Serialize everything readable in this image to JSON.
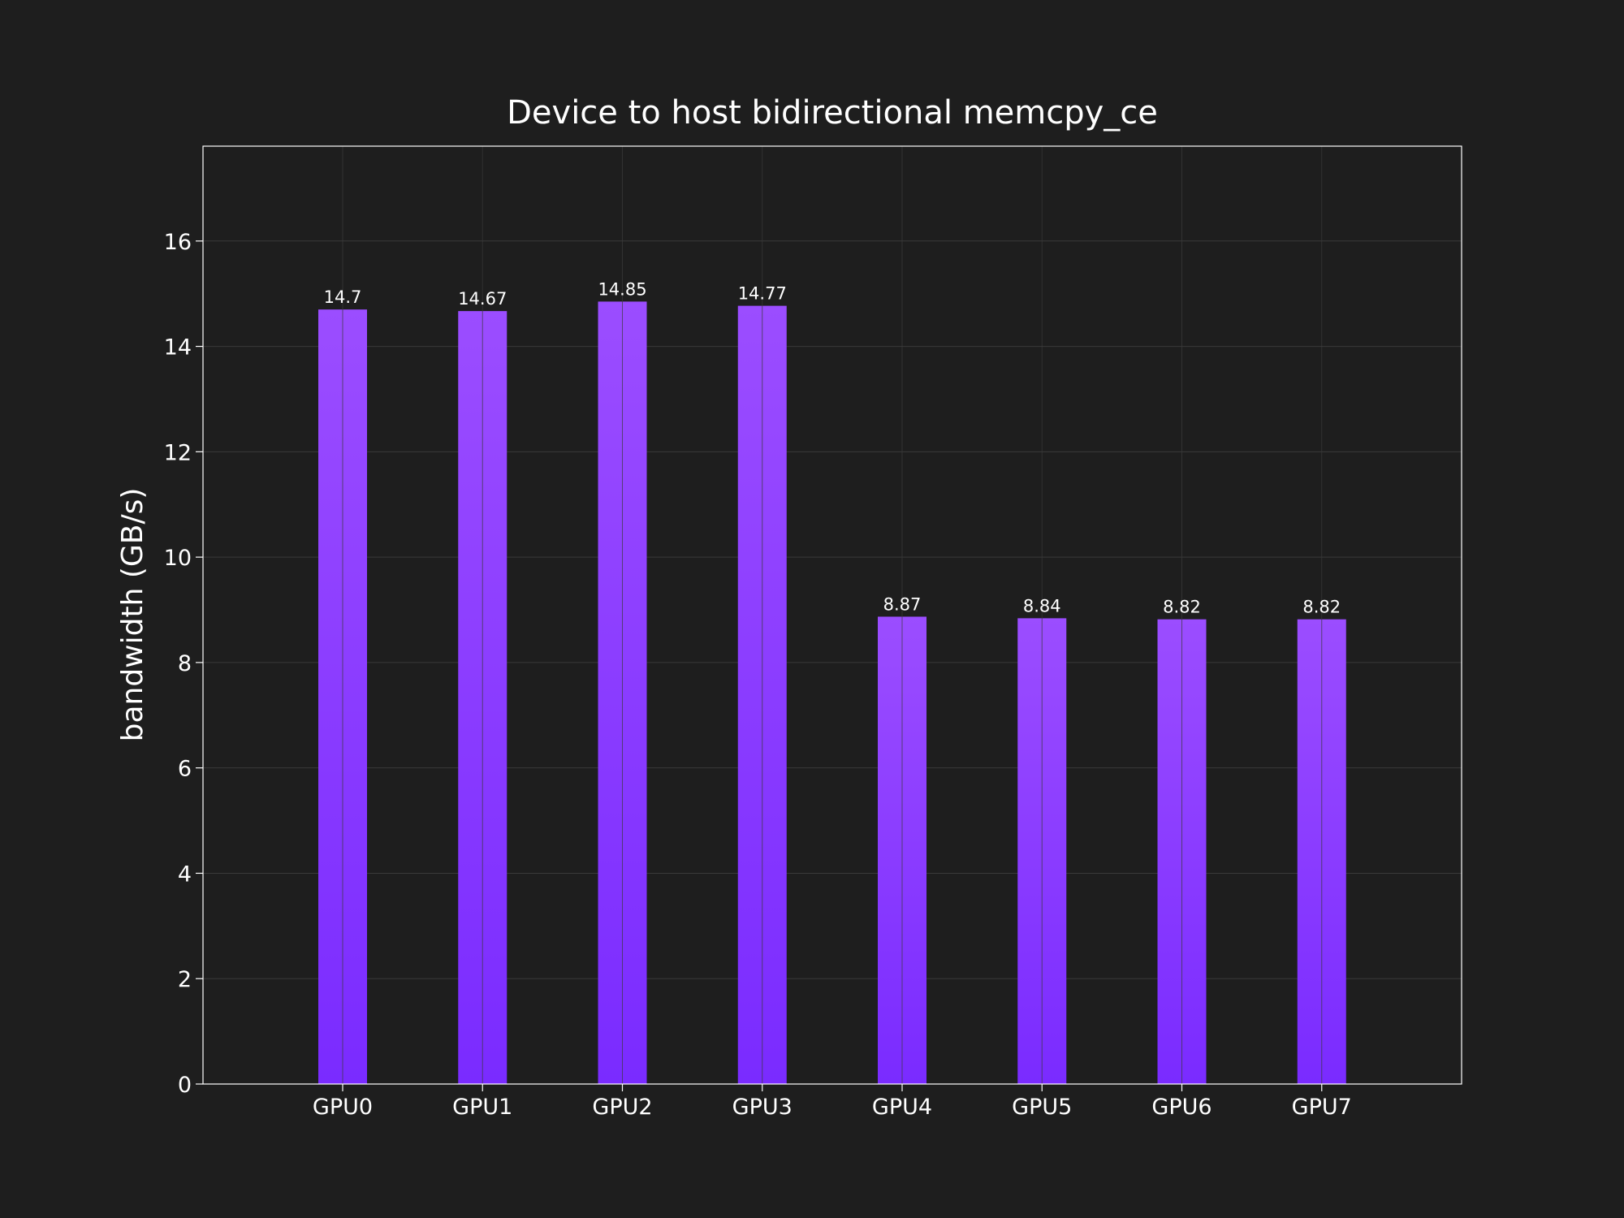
{
  "chart_data": {
    "type": "bar",
    "title": "Device to host bidirectional memcpy_ce",
    "xlabel": "",
    "ylabel": "bandwidth (GB/s)",
    "categories": [
      "GPU0",
      "GPU1",
      "GPU2",
      "GPU3",
      "GPU4",
      "GPU5",
      "GPU6",
      "GPU7"
    ],
    "values": [
      14.7,
      14.67,
      14.85,
      14.77,
      8.87,
      8.84,
      8.82,
      8.82
    ],
    "value_labels": [
      "14.7",
      "14.67",
      "14.85",
      "14.77",
      "8.87",
      "8.84",
      "8.82",
      "8.82"
    ],
    "ylim": [
      0,
      17.8
    ],
    "yticks": [
      0,
      2,
      4,
      6,
      8,
      10,
      12,
      14,
      16
    ],
    "grid": true,
    "legend": "none",
    "colors": {
      "background": "#1e1e1e",
      "bar_top": "#9b4dff",
      "bar_bottom": "#7a2bff",
      "grid": "#3a3a3a",
      "axes": "#ffffff",
      "text": "#ffffff"
    }
  }
}
